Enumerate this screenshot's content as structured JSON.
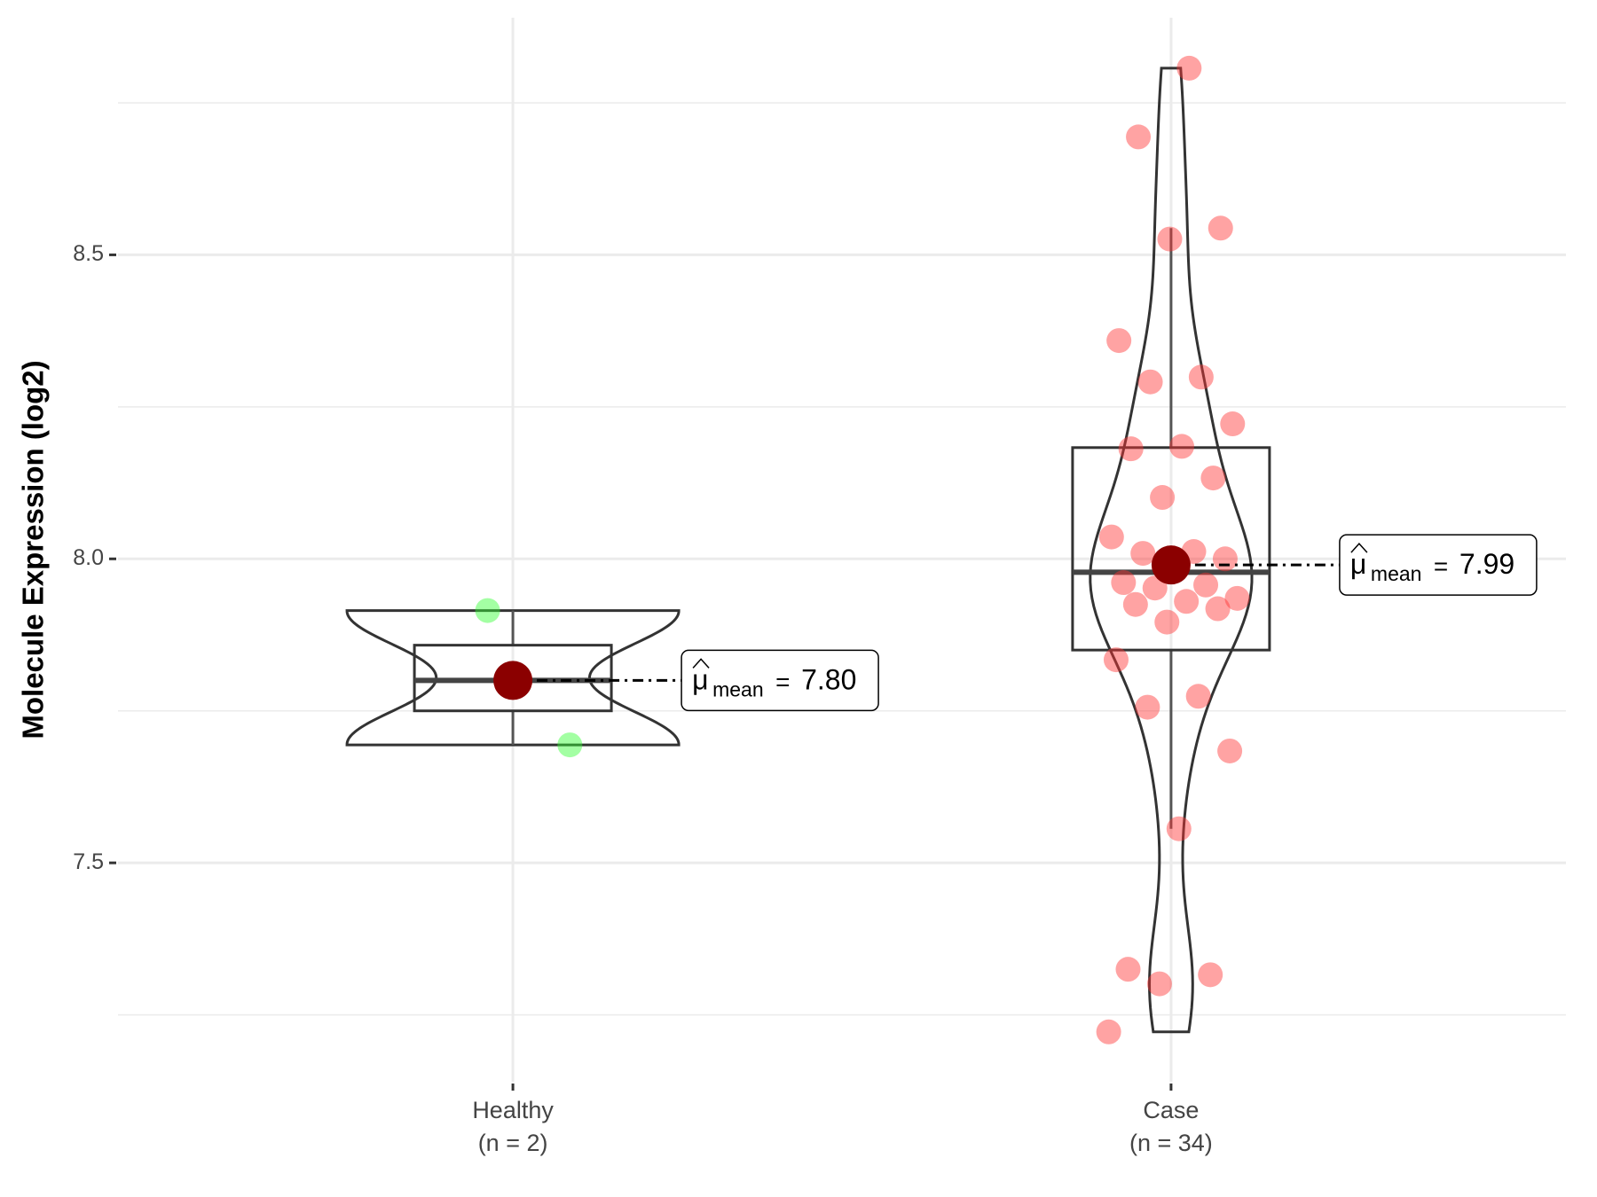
{
  "chart_data": {
    "type": "violin",
    "y_label": "Molecule Expression (log2)",
    "categories": [
      "Healthy",
      "Case"
    ],
    "n_labels": [
      "(n = 2)",
      "(n = 34)"
    ],
    "ylim": [
      7.14,
      8.89
    ],
    "yticks": [
      7.5,
      {
        "value": 8,
        "label": "8.0"
      },
      8.5
    ],
    "minor_yticks": [
      7.25,
      7.75,
      8.25,
      8.75
    ],
    "grid": true,
    "mean_symbol": "μ",
    "mean_subscript": "mean",
    "mean_equals": "=",
    "mean_color": "#8b0000",
    "series": [
      {
        "color": "#33ff33",
        "values": [
          7.915,
          7.694
        ],
        "whisker_low": 7.694,
        "q1": 7.75,
        "median": 7.8,
        "q3": 7.858,
        "whisker_high": 7.915,
        "mean": 7.8,
        "mean_label": "7.80"
      },
      {
        "color": "#ff3333",
        "values": [
          8.807,
          8.694,
          8.544,
          8.526,
          8.359,
          8.299,
          8.291,
          8.222,
          8.185,
          8.181,
          8.133,
          8.101,
          8.036,
          8.012,
          8.009,
          8.0,
          7.99,
          7.961,
          7.957,
          7.952,
          7.935,
          7.93,
          7.925,
          7.918,
          7.896,
          7.834,
          7.774,
          7.756,
          7.684,
          7.556,
          7.325,
          7.316,
          7.301,
          7.222
        ],
        "whisker_low": 7.556,
        "q1": 7.85,
        "median": 7.978,
        "q3": 8.183,
        "whisker_high": 8.544,
        "mean": 7.99,
        "mean_label": "7.99"
      }
    ]
  }
}
